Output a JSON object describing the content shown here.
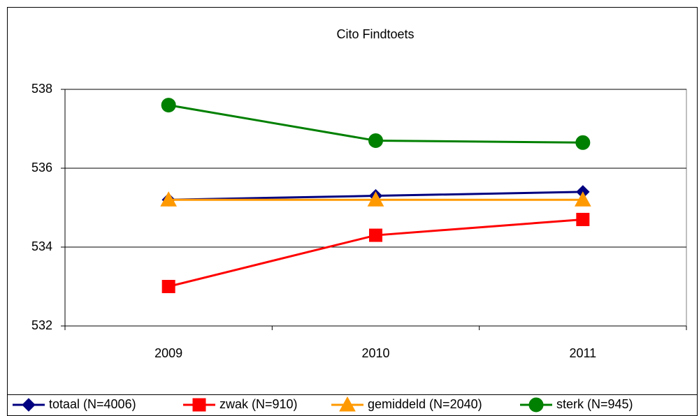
{
  "chart_data": {
    "type": "line",
    "title": "Cito Findtoets",
    "categories": [
      "2009",
      "2010",
      "2011"
    ],
    "series": [
      {
        "name": "totaal (N=4006)",
        "color": "#000080",
        "marker": "diamond",
        "values": [
          535.2,
          535.3,
          535.4
        ]
      },
      {
        "name": "zwak (N=910)",
        "color": "#ff0000",
        "marker": "square",
        "values": [
          533.0,
          534.3,
          534.7
        ]
      },
      {
        "name": "gemiddeld (N=2040)",
        "color": "#ff9900",
        "marker": "triangle",
        "values": [
          535.2,
          535.2,
          535.2
        ]
      },
      {
        "name": "sterk (N=945)",
        "color": "#008000",
        "marker": "circle",
        "values": [
          537.6,
          536.7,
          536.65
        ]
      }
    ],
    "ylim": [
      532,
      538
    ],
    "yticks": [
      532,
      534,
      536,
      538
    ],
    "grid": true,
    "legend": "bottom"
  }
}
